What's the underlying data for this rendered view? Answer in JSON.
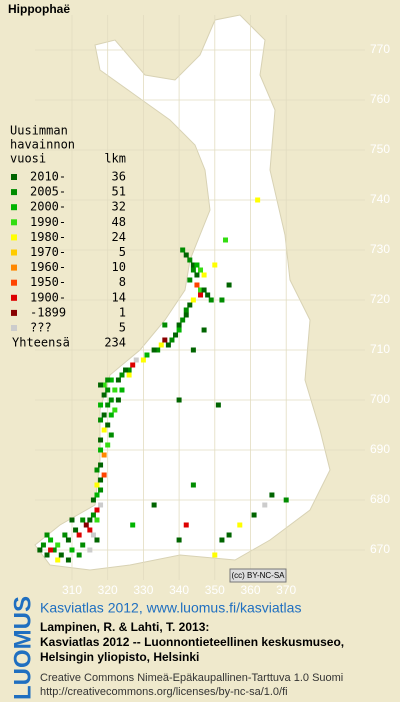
{
  "map": {
    "title": "Hippophaë",
    "xticks": [
      310,
      320,
      330,
      340,
      350,
      360,
      370
    ],
    "yticks": [
      770,
      760,
      750,
      740,
      730,
      720,
      710,
      700,
      690,
      680,
      670
    ],
    "badge": "(cc) BY-NC-SA",
    "squares": [
      [
        341,
        730,
        1
      ],
      [
        342,
        729,
        0
      ],
      [
        343,
        728,
        1
      ],
      [
        344,
        727,
        0
      ],
      [
        345,
        727,
        2
      ],
      [
        344,
        726,
        1
      ],
      [
        346,
        726,
        3
      ],
      [
        345,
        725,
        0
      ],
      [
        347,
        725,
        4
      ],
      [
        343,
        724,
        1
      ],
      [
        345,
        723,
        7
      ],
      [
        346,
        722,
        3
      ],
      [
        347,
        722,
        0
      ],
      [
        346,
        721,
        8
      ],
      [
        348,
        721,
        0
      ],
      [
        349,
        720,
        1
      ],
      [
        344,
        720,
        4
      ],
      [
        353,
        732,
        3
      ],
      [
        354,
        723,
        0
      ],
      [
        350,
        727,
        4
      ],
      [
        362,
        740,
        4
      ],
      [
        352,
        720,
        1
      ],
      [
        343,
        719,
        0
      ],
      [
        342,
        718,
        1
      ],
      [
        342,
        717,
        0
      ],
      [
        341,
        716,
        1
      ],
      [
        340,
        715,
        0
      ],
      [
        340,
        714,
        2
      ],
      [
        339,
        713,
        0
      ],
      [
        338,
        712,
        1
      ],
      [
        337,
        711,
        0
      ],
      [
        336,
        712,
        9
      ],
      [
        335,
        711,
        4
      ],
      [
        334,
        710,
        1
      ],
      [
        333,
        710,
        0
      ],
      [
        344,
        710,
        0
      ],
      [
        336,
        715,
        1
      ],
      [
        331,
        709,
        2
      ],
      [
        330,
        708,
        4
      ],
      [
        328,
        708,
        10
      ],
      [
        327,
        707,
        8
      ],
      [
        326,
        706,
        1
      ],
      [
        325,
        706,
        0
      ],
      [
        324,
        705,
        1
      ],
      [
        323,
        704,
        0
      ],
      [
        321,
        704,
        2
      ],
      [
        320,
        704,
        1
      ],
      [
        319,
        703,
        3
      ],
      [
        318,
        703,
        0
      ],
      [
        320,
        702,
        1
      ],
      [
        322,
        702,
        3
      ],
      [
        324,
        702,
        2
      ],
      [
        319,
        701,
        0
      ],
      [
        321,
        700,
        1
      ],
      [
        323,
        700,
        0
      ],
      [
        318,
        699,
        2
      ],
      [
        320,
        699,
        1
      ],
      [
        322,
        698,
        3
      ],
      [
        319,
        697,
        0
      ],
      [
        321,
        697,
        2
      ],
      [
        318,
        696,
        1
      ],
      [
        320,
        695,
        0
      ],
      [
        319,
        694,
        4
      ],
      [
        321,
        693,
        1
      ],
      [
        318,
        692,
        0
      ],
      [
        320,
        691,
        3
      ],
      [
        318,
        690,
        2
      ],
      [
        319,
        689,
        6
      ],
      [
        326,
        705,
        4
      ],
      [
        318,
        687,
        0
      ],
      [
        317,
        686,
        1
      ],
      [
        319,
        685,
        7
      ],
      [
        318,
        684,
        0
      ],
      [
        317,
        683,
        4
      ],
      [
        318,
        682,
        1
      ],
      [
        317,
        681,
        2
      ],
      [
        316,
        680,
        0
      ],
      [
        318,
        679,
        10
      ],
      [
        317,
        678,
        8
      ],
      [
        316,
        677,
        1
      ],
      [
        315,
        676,
        0
      ],
      [
        317,
        676,
        3
      ],
      [
        301,
        670,
        0
      ],
      [
        302,
        671,
        1
      ],
      [
        303,
        669,
        0
      ],
      [
        304,
        672,
        2
      ],
      [
        305,
        670,
        1
      ],
      [
        306,
        671,
        3
      ],
      [
        307,
        669,
        0
      ],
      [
        308,
        673,
        1
      ],
      [
        309,
        672,
        0
      ],
      [
        310,
        670,
        2
      ],
      [
        311,
        674,
        0
      ],
      [
        312,
        673,
        8
      ],
      [
        313,
        671,
        1
      ],
      [
        314,
        675,
        9
      ],
      [
        315,
        674,
        8
      ],
      [
        316,
        673,
        10
      ],
      [
        317,
        672,
        0
      ],
      [
        303,
        673,
        1
      ],
      [
        306,
        668,
        4
      ],
      [
        309,
        668,
        0
      ],
      [
        312,
        669,
        1
      ],
      [
        310,
        676,
        0
      ],
      [
        313,
        676,
        1
      ],
      [
        304,
        670,
        8
      ],
      [
        315,
        670,
        10
      ],
      [
        340,
        672,
        0
      ],
      [
        342,
        675,
        8
      ],
      [
        350,
        669,
        4
      ],
      [
        352,
        672,
        0
      ],
      [
        357,
        675,
        4
      ],
      [
        361,
        677,
        0
      ],
      [
        364,
        679,
        10
      ],
      [
        370,
        680,
        1
      ],
      [
        366,
        681,
        0
      ],
      [
        354,
        673,
        0
      ],
      [
        327,
        675,
        2
      ],
      [
        333,
        679,
        0
      ],
      [
        340,
        700,
        0
      ],
      [
        347,
        714,
        0
      ],
      [
        351,
        699,
        0
      ],
      [
        344,
        683,
        1
      ]
    ]
  },
  "legend": {
    "title": [
      "Uusimman",
      "havainnon",
      "vuosi"
    ],
    "count_header": "lkm",
    "rows": [
      {
        "label": "2010-",
        "count": 36,
        "color": "#006400"
      },
      {
        "label": "2005-",
        "count": 51,
        "color": "#008c00"
      },
      {
        "label": "2000-",
        "count": 32,
        "color": "#00b400"
      },
      {
        "label": "1990-",
        "count": 48,
        "color": "#33dd11"
      },
      {
        "label": "1980-",
        "count": 24,
        "color": "#ffff00"
      },
      {
        "label": "1970-",
        "count": 5,
        "color": "#ffcc00"
      },
      {
        "label": "1960-",
        "count": 10,
        "color": "#ff8800"
      },
      {
        "label": "1950-",
        "count": 8,
        "color": "#ff4400"
      },
      {
        "label": "1900-",
        "count": 14,
        "color": "#dd0000"
      },
      {
        "label": "-1899",
        "count": 1,
        "color": "#880000"
      },
      {
        "label": "???",
        "count": 5,
        "color": "#cccccc"
      }
    ],
    "total_label": "Yhteensä",
    "total": 234
  },
  "footer": {
    "logo": "LUOMUS",
    "link": "Kasviatlas 2012, www.luomus.fi/kasviatlas",
    "citation": [
      "Lampinen, R. & Lahti, T. 2013:",
      "Kasviatlas 2012 -- Luonnontieteellinen keskusmuseo,",
      "Helsingin yliopisto, Helsinki"
    ],
    "license": [
      "Creative Commons Nimeä-Epäkaupallinen-Tarttuva 1.0 Suomi",
      "http://creativecommons.org/licenses/by-nc-sa/1.0/fi"
    ]
  }
}
